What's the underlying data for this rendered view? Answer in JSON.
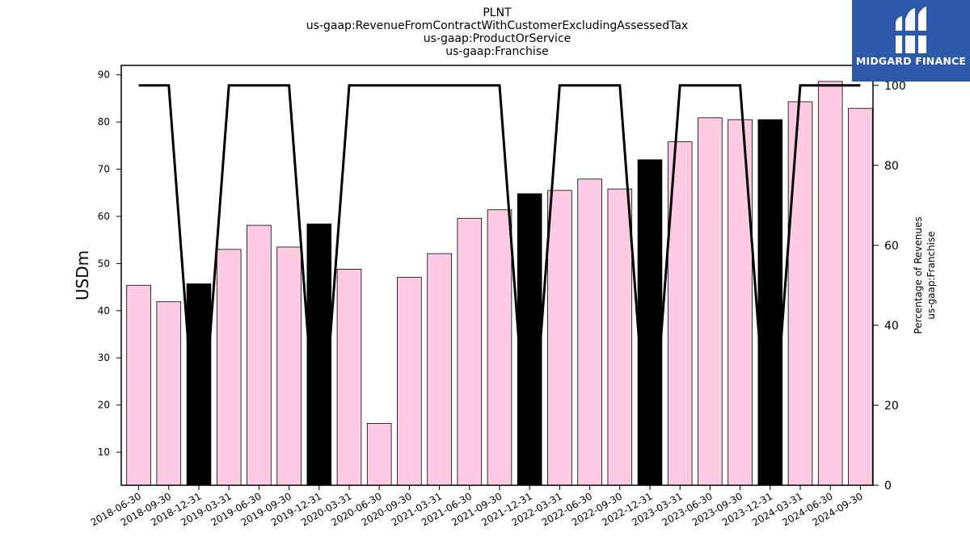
{
  "chart_data": {
    "type": "bar",
    "title_lines": [
      "PLNT",
      "us-gaap:RevenueFromContractWithCustomerExcludingAssessedTax",
      "us-gaap:ProductOrService",
      "us-gaap:Franchise"
    ],
    "ylabel": "USDm",
    "y2label_lines": [
      "Percentage of Revenues",
      "us-gaap:Franchise"
    ],
    "categories": [
      "2018-06-30",
      "2018-09-30",
      "2018-12-31",
      "2019-03-31",
      "2019-06-30",
      "2019-09-30",
      "2019-12-31",
      "2020-03-31",
      "2020-06-30",
      "2020-09-30",
      "2021-03-31",
      "2021-06-30",
      "2021-09-30",
      "2021-12-31",
      "2022-03-31",
      "2022-06-30",
      "2022-09-30",
      "2022-12-31",
      "2023-03-31",
      "2023-06-30",
      "2023-09-30",
      "2023-12-31",
      "2024-03-31",
      "2024-06-30",
      "2024-09-30"
    ],
    "values": [
      45.4,
      41.9,
      45.7,
      53.0,
      58.1,
      53.5,
      58.4,
      48.8,
      16.1,
      47.1,
      52.1,
      59.6,
      61.4,
      64.8,
      65.5,
      67.9,
      65.8,
      72.0,
      75.8,
      80.9,
      80.5,
      80.5,
      84.3,
      88.6,
      82.9
    ],
    "highlighted": [
      false,
      false,
      true,
      false,
      false,
      false,
      true,
      false,
      false,
      false,
      false,
      false,
      false,
      true,
      false,
      false,
      false,
      true,
      false,
      false,
      false,
      true,
      false,
      false,
      false
    ],
    "percentage": [
      100,
      100,
      0,
      100,
      100,
      100,
      0,
      100,
      100,
      100,
      100,
      100,
      100,
      0,
      100,
      100,
      100,
      0,
      100,
      100,
      100,
      0,
      100,
      100,
      100
    ],
    "ylim": [
      3,
      92
    ],
    "y_ticks": [
      10,
      20,
      30,
      40,
      50,
      60,
      70,
      80,
      90
    ],
    "y2lim": [
      0,
      105
    ],
    "y2_ticks": [
      0,
      20,
      40,
      60,
      80,
      100
    ],
    "bar_color": "#fccae2",
    "highlight_color": "#000000",
    "line_color": "#000000"
  },
  "logo": {
    "text": "MIDGARD FINANCE",
    "color": "#2c5aa8"
  }
}
